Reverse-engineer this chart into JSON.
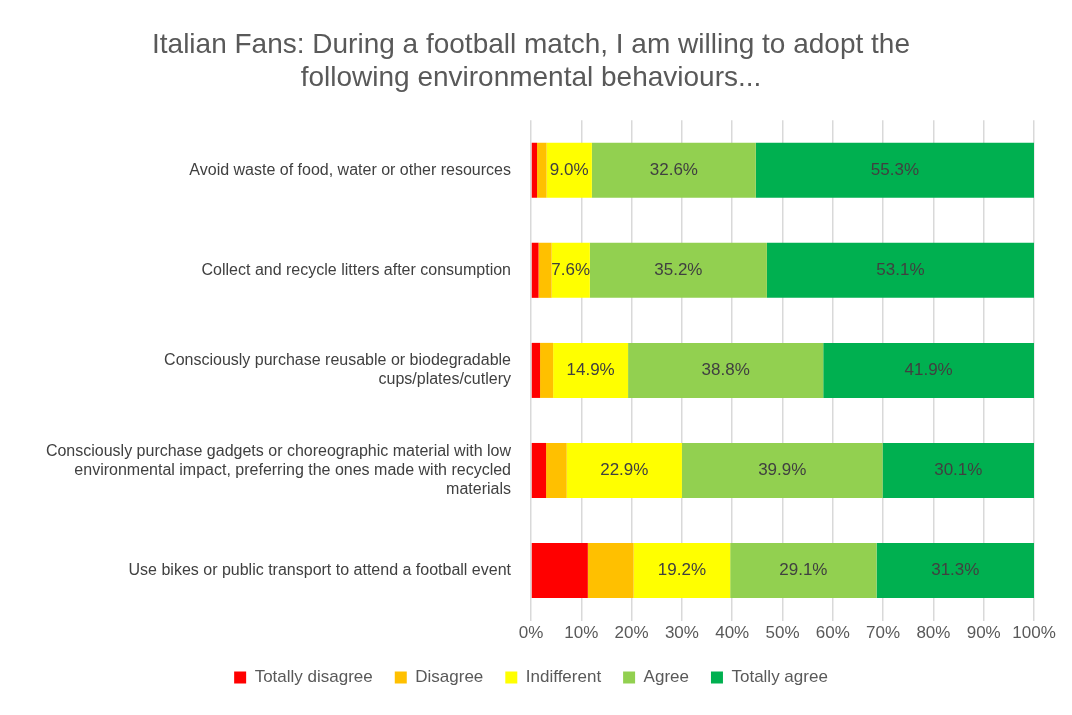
{
  "chart_data": {
    "type": "bar",
    "orientation": "horizontal",
    "stacked": true,
    "title": "Italian Fans: During a football match, I am willing to adopt the following environmental behaviours...",
    "categories": [
      "Avoid waste of food, water or other resources",
      "Collect and recycle litters after consumption",
      "Consciously purchase reusable or biodegradable cups/plates/cutlery",
      "Consciously purchase gadgets or choreographic material with low environmental impact, preferring the ones made with recycled materials",
      "Use bikes or public transport to attend a football event"
    ],
    "series": [
      {
        "name": "Totally disagree",
        "color": "#ff0000",
        "values": [
          1.2,
          1.5,
          1.8,
          3.0,
          11.3
        ],
        "value_labels": [
          null,
          null,
          null,
          null,
          null
        ]
      },
      {
        "name": "Disagree",
        "color": "#ffc000",
        "values": [
          1.9,
          2.6,
          2.6,
          4.1,
          9.1
        ],
        "value_labels": [
          null,
          null,
          null,
          null,
          null
        ]
      },
      {
        "name": "Indifferent",
        "color": "#ffff00",
        "values": [
          9.0,
          7.6,
          14.9,
          22.9,
          19.2
        ],
        "value_labels": [
          "9.0%",
          "7.6%",
          "14.9%",
          "22.9%",
          "19.2%"
        ]
      },
      {
        "name": "Agree",
        "color": "#92d050",
        "values": [
          32.6,
          35.2,
          38.8,
          39.9,
          29.1
        ],
        "value_labels": [
          "32.6%",
          "35.2%",
          "38.8%",
          "39.9%",
          "29.1%"
        ]
      },
      {
        "name": "Totally agree",
        "color": "#00b050",
        "values": [
          55.3,
          53.1,
          41.9,
          30.1,
          31.3
        ],
        "value_labels": [
          "55.3%",
          "53.1%",
          "41.9%",
          "30.1%",
          "31.3%"
        ]
      }
    ],
    "xlim": [
      0,
      100
    ],
    "xticks": [
      {
        "value": 0,
        "label": "0%"
      },
      {
        "value": 10,
        "label": "10%"
      },
      {
        "value": 20,
        "label": "20%"
      },
      {
        "value": 30,
        "label": "30%"
      },
      {
        "value": 40,
        "label": "40%"
      },
      {
        "value": 50,
        "label": "50%"
      },
      {
        "value": 60,
        "label": "60%"
      },
      {
        "value": 70,
        "label": "70%"
      },
      {
        "value": 80,
        "label": "80%"
      },
      {
        "value": 90,
        "label": "90%"
      },
      {
        "value": 100,
        "label": "100%"
      }
    ],
    "grid": "x",
    "legend": "bottom"
  }
}
